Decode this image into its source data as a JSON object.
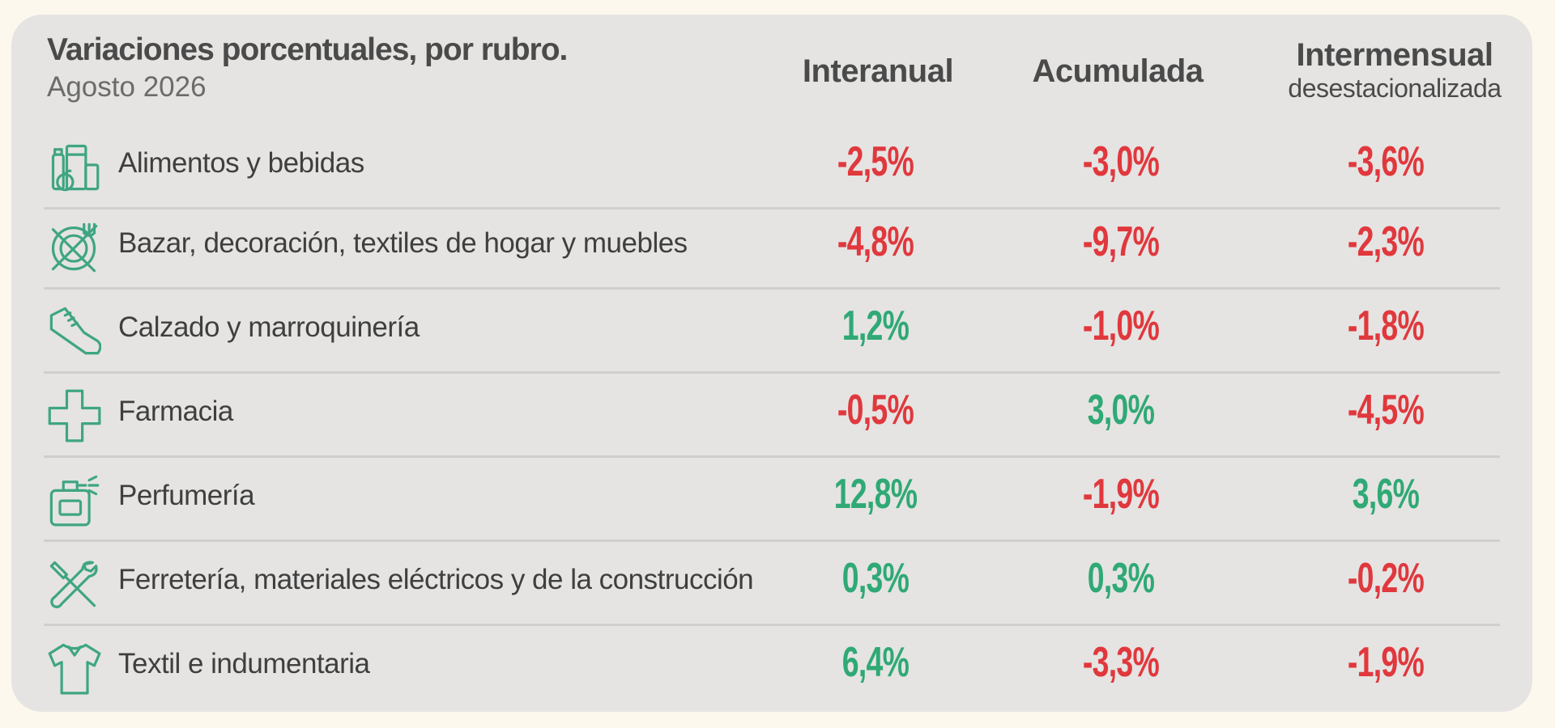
{
  "header": {
    "title": "Variaciones porcentuales, por rubro.",
    "subtitle": "Agosto 2026",
    "col1": "Interanual",
    "col2": "Acumulada",
    "col3_main": "Intermensual",
    "col3_sub": "desestacionalizada"
  },
  "colors": {
    "negative": "#e0383d",
    "positive": "#2fa975",
    "icon": "#3fa583"
  },
  "rows": [
    {
      "label": "Alimentos y bebidas",
      "icon": "grocery-icon",
      "values": [
        "-2,5%",
        "-3,0%",
        "-3,6%"
      ]
    },
    {
      "label": "Bazar, decoración, textiles de hogar y muebles",
      "icon": "plate-cutlery-icon",
      "values": [
        "-4,8%",
        "-9,7%",
        "-2,3%"
      ]
    },
    {
      "label": "Calzado y marroquinería",
      "icon": "shoe-icon",
      "values": [
        "1,2%",
        "-1,0%",
        "-1,8%"
      ]
    },
    {
      "label": "Farmacia",
      "icon": "pharmacy-cross-icon",
      "values": [
        "-0,5%",
        "3,0%",
        "-4,5%"
      ]
    },
    {
      "label": "Perfumería",
      "icon": "perfume-icon",
      "values": [
        "12,8%",
        "-1,9%",
        "3,6%"
      ]
    },
    {
      "label": "Ferretería, materiales eléctricos y de la construcción",
      "icon": "tools-icon",
      "values": [
        "0,3%",
        "0,3%",
        "-0,2%"
      ]
    },
    {
      "label": "Textil e indumentaria",
      "icon": "shirt-icon",
      "values": [
        "6,4%",
        "-3,3%",
        "-1,9%"
      ]
    }
  ],
  "chart_data": {
    "type": "table",
    "title": "Variaciones porcentuales, por rubro.",
    "subtitle": "Agosto 2026",
    "columns": [
      "Interanual",
      "Acumulada",
      "Intermensual desestacionalizada"
    ],
    "categories": [
      "Alimentos y bebidas",
      "Bazar, decoración, textiles de hogar y muebles",
      "Calzado y marroquinería",
      "Farmacia",
      "Perfumería",
      "Ferretería, materiales eléctricos y de la construcción",
      "Textil e indumentaria"
    ],
    "series": [
      {
        "name": "Interanual",
        "values": [
          -2.5,
          -4.8,
          1.2,
          -0.5,
          12.8,
          0.3,
          6.4
        ]
      },
      {
        "name": "Acumulada",
        "values": [
          -3.0,
          -9.7,
          -1.0,
          3.0,
          -1.9,
          0.3,
          -3.3
        ]
      },
      {
        "name": "Intermensual desestacionalizada",
        "values": [
          -3.6,
          -2.3,
          -1.8,
          -4.5,
          3.6,
          -0.2,
          -1.9
        ]
      }
    ]
  }
}
